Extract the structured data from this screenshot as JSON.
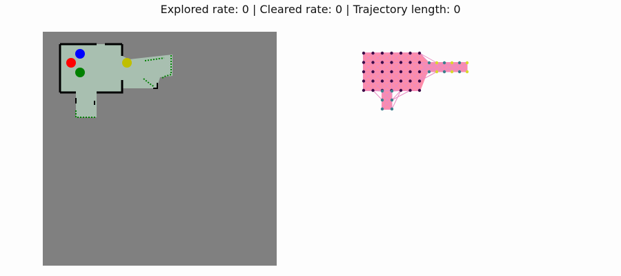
{
  "title": "Explored rate: 0 | Cleared rate: 0 | Trajectory length: 0",
  "colors": {
    "unknown": "#808080",
    "explored_floor": "#a8bfb0",
    "wall": "#000000",
    "frontier": "#008000",
    "agent_blue": "#0000ff",
    "agent_red": "#ff0000",
    "agent_green": "#008000",
    "target_yellow": "#bfbf00",
    "graph_fill": "#ff7f9e",
    "graph_edge": "#e98cc4",
    "node_dark": "#3b0a46",
    "node_teal": "#3b7f8c",
    "node_yellow": "#d9d92a"
  },
  "map": {
    "markers": [
      {
        "name": "agent-blue",
        "color": "#0000ff"
      },
      {
        "name": "agent-red",
        "color": "#ff0000"
      },
      {
        "name": "agent-green",
        "color": "#008000"
      },
      {
        "name": "target-yellow",
        "color": "#bfbf00"
      }
    ]
  }
}
